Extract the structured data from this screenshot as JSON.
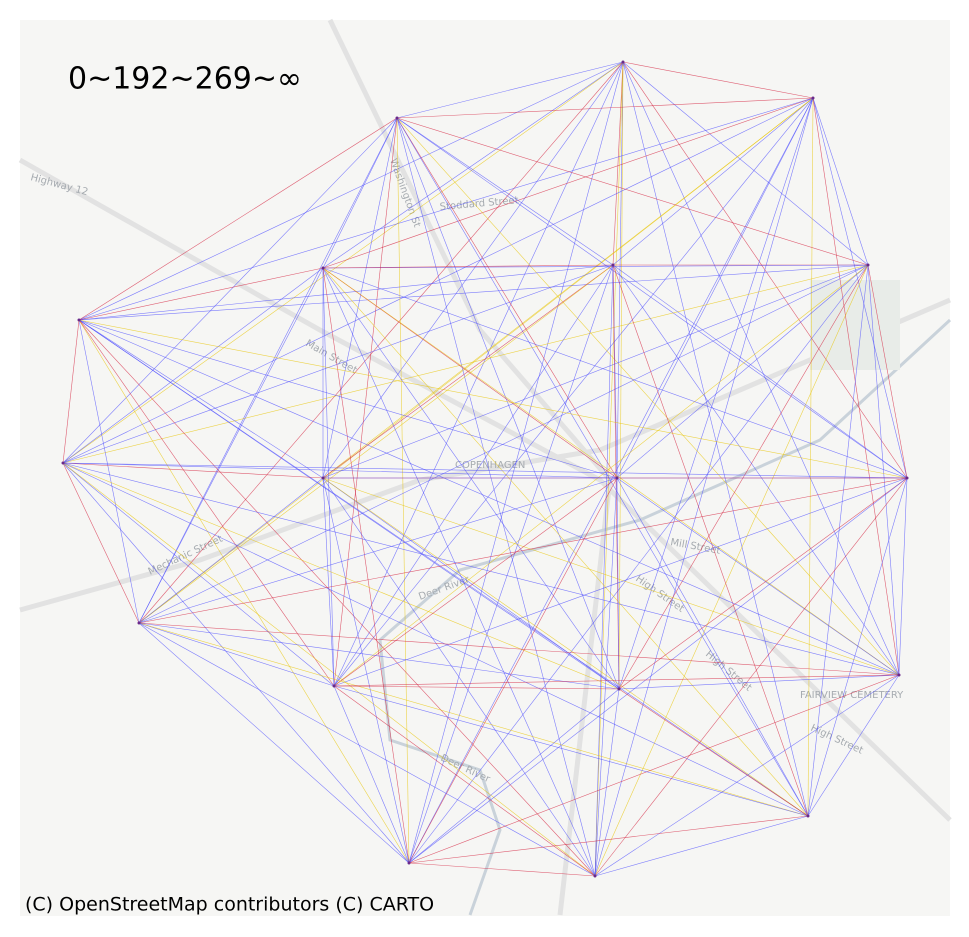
{
  "title": "0~192~269~∞",
  "attribution": "(C) OpenStreetMap contributors (C) CARTO",
  "map_labels": [
    "Highway 12",
    "Main Street",
    "COPENHAGEN",
    "Mechanic Street",
    "Deer River",
    "Deer River",
    "Mill Street",
    "High Street",
    "High Street",
    "FAIRVIEW CEMETERY",
    "High Street",
    "Washington St",
    "Stoddard Street"
  ]
}
